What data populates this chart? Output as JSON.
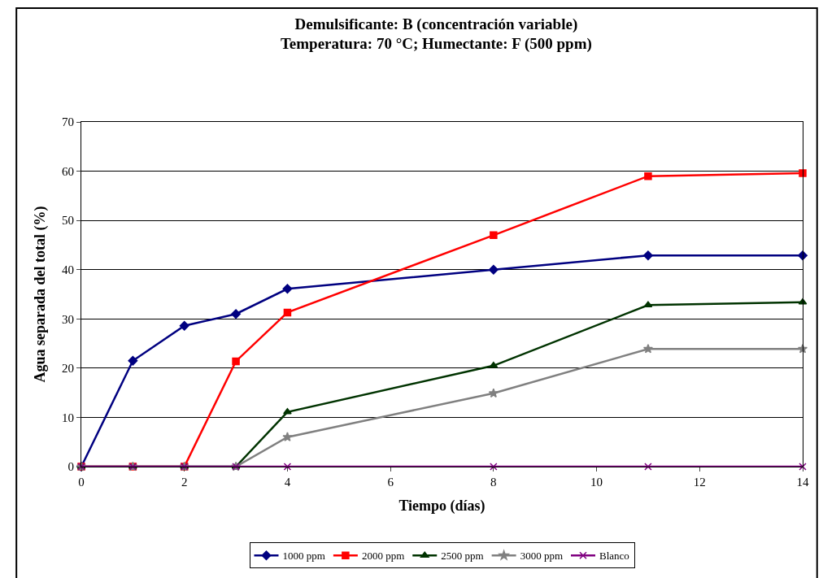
{
  "chart_data": {
    "type": "line",
    "title": "Demulsificante: B (concentración variable)\nTemperatura: 70 °C; Humectante: F (500 ppm)",
    "xlabel": "Tiempo (días)",
    "ylabel": "Agua separada del total (%)",
    "x": [
      0,
      1,
      2,
      3,
      4,
      8,
      11,
      14
    ],
    "series": [
      {
        "name": "1000 ppm",
        "color": "#000080",
        "marker": "diamond",
        "values": [
          0,
          21.5,
          28.6,
          31,
          36.1,
          40,
          42.9,
          42.9
        ]
      },
      {
        "name": "2000 ppm",
        "color": "#ff0000",
        "marker": "square",
        "values": [
          0,
          0,
          0,
          21.4,
          31.3,
          47,
          59,
          59.6
        ]
      },
      {
        "name": "2500 ppm",
        "color": "#003300",
        "marker": "triangle",
        "values": [
          0,
          0,
          0,
          0,
          11.1,
          20.5,
          32.8,
          33.4
        ]
      },
      {
        "name": "3000 ppm",
        "color": "#808080",
        "marker": "star",
        "values": [
          0,
          0,
          0,
          0,
          6,
          14.9,
          23.9,
          23.9
        ]
      },
      {
        "name": "Blanco",
        "color": "#800080",
        "marker": "cross",
        "values": [
          0,
          0,
          0,
          0,
          0,
          0,
          0,
          0
        ]
      }
    ],
    "xlim": [
      0,
      14
    ],
    "xticks": [
      0,
      2,
      4,
      6,
      8,
      10,
      12,
      14
    ],
    "ylim": [
      0,
      70
    ],
    "yticks": [
      0,
      10,
      20,
      30,
      40,
      50,
      60,
      70
    ],
    "grid": "y",
    "legend": "bottom"
  }
}
